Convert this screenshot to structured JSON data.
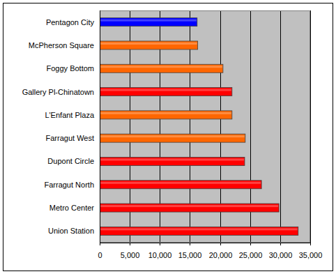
{
  "chart_data": {
    "type": "bar",
    "orientation": "horizontal",
    "categories": [
      "Pentagon City",
      "McPherson Square",
      "Foggy Bottom",
      "Gallery Pl-Chinatown",
      "L'Enfant Plaza",
      "Farragut West",
      "Dupont Circle",
      "Farragut North",
      "Metro Center",
      "Union Station"
    ],
    "values": [
      16200,
      16300,
      20500,
      22000,
      22000,
      24200,
      24100,
      26900,
      29800,
      33000
    ],
    "colors": [
      "#0000ff",
      "#ff6600",
      "#ff6600",
      "#ff0000",
      "#ff6600",
      "#ff6600",
      "#ff0000",
      "#ff0000",
      "#ff0000",
      "#ff0000"
    ],
    "xlim": [
      0,
      35000
    ],
    "xticks": [
      0,
      {
        "value": 5000,
        "label": "5,000"
      },
      {
        "value": 10000,
        "label": "10,000"
      },
      {
        "value": 15000,
        "label": "15,000"
      },
      {
        "value": 20000,
        "label": "20,000"
      },
      {
        "value": 25000,
        "label": "25,000"
      },
      {
        "value": 30000,
        "label": "30,000"
      },
      {
        "value": 35000,
        "label": "35,000"
      }
    ],
    "grid": true
  }
}
